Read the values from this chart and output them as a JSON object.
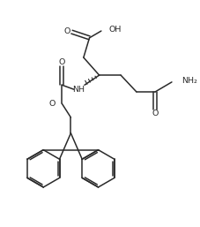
{
  "background_color": "#ffffff",
  "line_color": "#2a2a2a",
  "line_width": 1.1,
  "figsize": [
    2.28,
    2.57
  ],
  "dpi": 100,
  "xlim": [
    0,
    10
  ],
  "ylim": [
    0,
    11.3
  ]
}
